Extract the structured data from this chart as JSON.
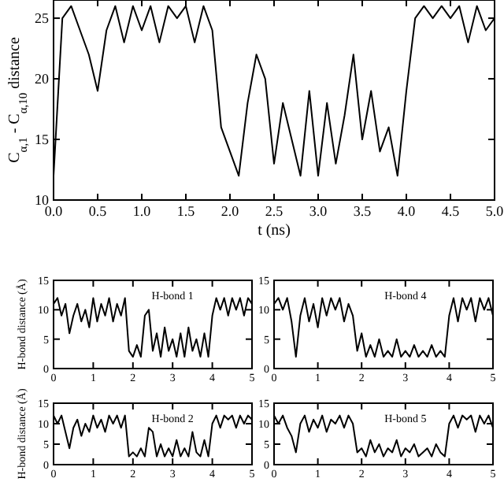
{
  "chart_data": [
    {
      "type": "line",
      "xlabel": "t (ns)",
      "ylabel": "C$_{α,1}$ - C$_{α,10}$ distance",
      "x": [
        0,
        0.1,
        0.2,
        0.3,
        0.4,
        0.5,
        0.6,
        0.7,
        0.8,
        0.9,
        1,
        1.1,
        1.2,
        1.3,
        1.4,
        1.5,
        1.6,
        1.7,
        1.8,
        1.9,
        2,
        2.1,
        2.2,
        2.3,
        2.4,
        2.5,
        2.6,
        2.7,
        2.8,
        2.9,
        3,
        3.1,
        3.2,
        3.3,
        3.4,
        3.5,
        3.6,
        3.7,
        3.8,
        3.9,
        4,
        4.1,
        4.2,
        4.3,
        4.4,
        4.5,
        4.6,
        4.7,
        4.8,
        4.9,
        5
      ],
      "xlim": [
        0,
        5
      ],
      "xticks": [
        {
          "value": 0,
          "label": "0.0"
        },
        0.5,
        {
          "value": 1,
          "label": "1.0"
        },
        1.5,
        {
          "value": 2,
          "label": "2.0"
        },
        2.5,
        {
          "value": 3,
          "label": "3.0"
        },
        3.5,
        {
          "value": 4,
          "label": "4.0"
        },
        4.5,
        {
          "value": 5,
          "label": "5.0"
        }
      ],
      "ylim": [
        10,
        26.5
      ],
      "yticks": [
        10,
        15,
        20,
        25
      ],
      "series": [
        {
          "color": "#000000",
          "values": [
            12,
            25,
            26,
            24,
            22,
            19,
            24,
            26,
            23,
            26,
            24,
            26,
            23,
            26,
            25,
            26,
            23,
            26,
            24,
            16,
            14,
            12,
            18,
            22,
            20,
            13,
            18,
            15,
            12,
            19,
            12,
            18,
            13,
            17,
            22,
            15,
            19,
            14,
            16,
            12,
            19,
            25,
            26,
            25,
            26,
            25,
            26,
            23,
            26,
            24,
            25
          ]
        }
      ]
    },
    {
      "type": "line",
      "title": "H-bond 1",
      "ylabel": "H-bond distance (Å)",
      "x": [
        0,
        0.1,
        0.2,
        0.3,
        0.4,
        0.5,
        0.6,
        0.7,
        0.8,
        0.9,
        1,
        1.1,
        1.2,
        1.3,
        1.4,
        1.5,
        1.6,
        1.7,
        1.8,
        1.9,
        2,
        2.1,
        2.2,
        2.3,
        2.4,
        2.5,
        2.6,
        2.7,
        2.8,
        2.9,
        3,
        3.1,
        3.2,
        3.3,
        3.4,
        3.5,
        3.6,
        3.7,
        3.8,
        3.9,
        4,
        4.1,
        4.2,
        4.3,
        4.4,
        4.5,
        4.6,
        4.7,
        4.8,
        4.9,
        5
      ],
      "xlim": [
        0,
        5
      ],
      "xticks": [
        0,
        1,
        2,
        3,
        4,
        5
      ],
      "ylim": [
        0,
        15
      ],
      "yticks": [
        0,
        5,
        10,
        15
      ],
      "series": [
        {
          "color": "#000000",
          "values": [
            11,
            12,
            9,
            11,
            6,
            9,
            11,
            8,
            10,
            7,
            12,
            8,
            11,
            9,
            12,
            8,
            11,
            9,
            12,
            3,
            2,
            4,
            2,
            9,
            10,
            3,
            6,
            2,
            7,
            3,
            5,
            2,
            6,
            2,
            7,
            3,
            5,
            2,
            6,
            2,
            9,
            12,
            10,
            12,
            9,
            12,
            10,
            12,
            9,
            12,
            11
          ]
        }
      ]
    },
    {
      "type": "line",
      "title": "H-bond 2",
      "ylabel": "H-bond distance (Å)",
      "x": [
        0,
        0.1,
        0.2,
        0.3,
        0.4,
        0.5,
        0.6,
        0.7,
        0.8,
        0.9,
        1,
        1.1,
        1.2,
        1.3,
        1.4,
        1.5,
        1.6,
        1.7,
        1.8,
        1.9,
        2,
        2.1,
        2.2,
        2.3,
        2.4,
        2.5,
        2.6,
        2.7,
        2.8,
        2.9,
        3,
        3.1,
        3.2,
        3.3,
        3.4,
        3.5,
        3.6,
        3.7,
        3.8,
        3.9,
        4,
        4.1,
        4.2,
        4.3,
        4.4,
        4.5,
        4.6,
        4.7,
        4.8,
        4.9,
        5
      ],
      "xlim": [
        0,
        5
      ],
      "xticks": [
        0,
        1,
        2,
        3,
        4,
        5
      ],
      "ylim": [
        0,
        15
      ],
      "yticks": [
        0,
        5,
        10,
        15
      ],
      "series": [
        {
          "color": "#000000",
          "values": [
            12,
            10,
            12,
            8,
            4,
            9,
            11,
            7,
            10,
            8,
            12,
            9,
            11,
            8,
            12,
            10,
            12,
            9,
            12,
            2,
            3,
            2,
            4,
            2,
            9,
            8,
            2,
            5,
            2,
            4,
            2,
            6,
            2,
            4,
            2,
            8,
            3,
            2,
            6,
            2,
            10,
            12,
            9,
            12,
            11,
            12,
            9,
            12,
            10,
            12,
            11
          ]
        }
      ]
    },
    {
      "type": "line",
      "title": "H-bond 4",
      "x": [
        0,
        0.1,
        0.2,
        0.3,
        0.4,
        0.5,
        0.6,
        0.7,
        0.8,
        0.9,
        1,
        1.1,
        1.2,
        1.3,
        1.4,
        1.5,
        1.6,
        1.7,
        1.8,
        1.9,
        2,
        2.1,
        2.2,
        2.3,
        2.4,
        2.5,
        2.6,
        2.7,
        2.8,
        2.9,
        3,
        3.1,
        3.2,
        3.3,
        3.4,
        3.5,
        3.6,
        3.7,
        3.8,
        3.9,
        4,
        4.1,
        4.2,
        4.3,
        4.4,
        4.5,
        4.6,
        4.7,
        4.8,
        4.9,
        5
      ],
      "xlim": [
        0,
        5
      ],
      "xticks": [
        0,
        1,
        2,
        3,
        4,
        5
      ],
      "ylim": [
        0,
        15
      ],
      "yticks": [
        0,
        5,
        10,
        15
      ],
      "series": [
        {
          "color": "#000000",
          "values": [
            11,
            12,
            10,
            12,
            8,
            2,
            9,
            12,
            8,
            11,
            7,
            12,
            9,
            12,
            10,
            12,
            8,
            11,
            9,
            3,
            6,
            2,
            4,
            2,
            5,
            2,
            3,
            2,
            5,
            2,
            3,
            2,
            4,
            2,
            3,
            2,
            4,
            2,
            3,
            2,
            9,
            12,
            8,
            12,
            10,
            12,
            8,
            12,
            10,
            12,
            9
          ]
        }
      ]
    },
    {
      "type": "line",
      "title": "H-bond 5",
      "x": [
        0,
        0.1,
        0.2,
        0.3,
        0.4,
        0.5,
        0.6,
        0.7,
        0.8,
        0.9,
        1,
        1.1,
        1.2,
        1.3,
        1.4,
        1.5,
        1.6,
        1.7,
        1.8,
        1.9,
        2,
        2.1,
        2.2,
        2.3,
        2.4,
        2.5,
        2.6,
        2.7,
        2.8,
        2.9,
        3,
        3.1,
        3.2,
        3.3,
        3.4,
        3.5,
        3.6,
        3.7,
        3.8,
        3.9,
        4,
        4.1,
        4.2,
        4.3,
        4.4,
        4.5,
        4.6,
        4.7,
        4.8,
        4.9,
        5
      ],
      "xlim": [
        0,
        5
      ],
      "xticks": [
        0,
        1,
        2,
        3,
        4,
        5
      ],
      "ylim": [
        0,
        15
      ],
      "yticks": [
        0,
        5,
        10,
        15
      ],
      "series": [
        {
          "color": "#000000",
          "values": [
            12,
            10,
            12,
            9,
            7,
            3,
            10,
            12,
            8,
            11,
            9,
            12,
            8,
            11,
            10,
            12,
            9,
            12,
            10,
            3,
            4,
            2,
            6,
            3,
            5,
            2,
            4,
            3,
            6,
            2,
            4,
            3,
            5,
            2,
            3,
            4,
            2,
            5,
            3,
            2,
            10,
            12,
            9,
            12,
            11,
            12,
            8,
            12,
            10,
            12,
            9
          ]
        }
      ]
    }
  ]
}
